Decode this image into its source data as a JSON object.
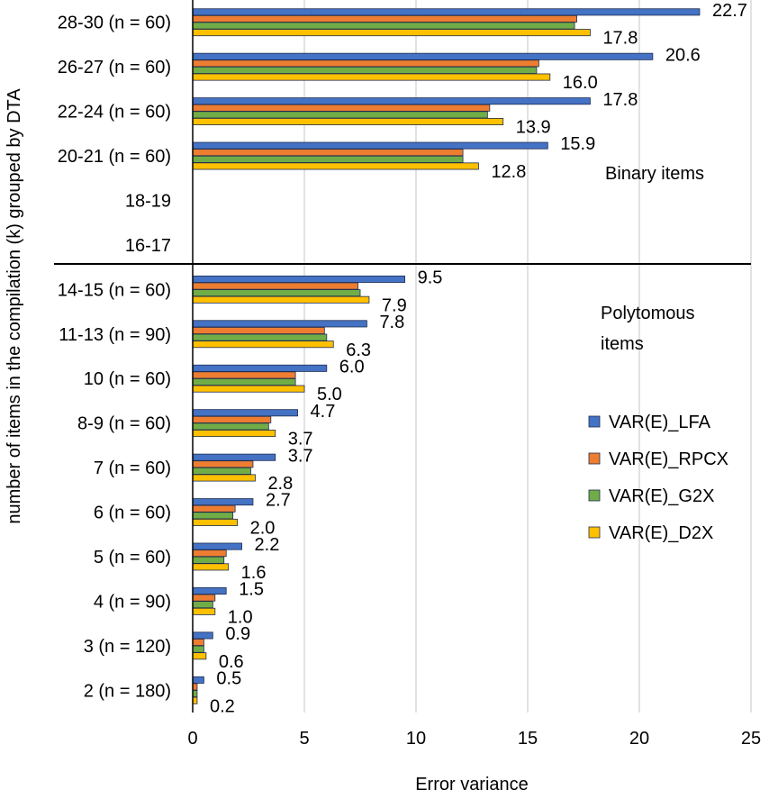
{
  "chart_data": {
    "type": "bar",
    "orientation": "horizontal",
    "xlabel": "Error variance",
    "ylabel": "number of items in the compilation (k) grouped by DTA",
    "xlim": [
      0,
      25
    ],
    "xticks": [
      0,
      5,
      10,
      15,
      20,
      25
    ],
    "grid": "vertical",
    "legend_position": "right",
    "categories": [
      "28-30 (n = 60)",
      "26-27 (n = 60)",
      "22-24 (n = 60)",
      "20-21 (n = 60)",
      "18-19",
      "16-17",
      "14-15 (n = 60)",
      "11-13 (n = 90)",
      "10 (n = 60)",
      "8-9 (n = 60)",
      "7 (n = 60)",
      "6 (n = 60)",
      "5 (n = 60)",
      "4 (n = 90)",
      "3 (n = 120)",
      "2 (n = 180)"
    ],
    "series": [
      {
        "name": "VAR(E)_LFA",
        "color": "#4472C4",
        "values": [
          22.7,
          20.6,
          17.8,
          15.9,
          null,
          null,
          9.5,
          7.8,
          6.0,
          4.7,
          3.7,
          2.7,
          2.2,
          1.5,
          0.9,
          0.5
        ]
      },
      {
        "name": "VAR(E)_RPCX",
        "color": "#ED7D31",
        "values": [
          17.2,
          15.5,
          13.3,
          12.1,
          null,
          null,
          7.4,
          5.9,
          4.6,
          3.5,
          2.7,
          1.9,
          1.5,
          1.0,
          0.5,
          0.2
        ]
      },
      {
        "name": "VAR(E)_G2X",
        "color": "#70AD47",
        "values": [
          17.1,
          15.4,
          13.2,
          12.1,
          null,
          null,
          7.5,
          6.0,
          4.6,
          3.4,
          2.6,
          1.8,
          1.4,
          0.9,
          0.5,
          0.2
        ]
      },
      {
        "name": "VAR(E)_D2X",
        "color": "#FFC000",
        "values": [
          17.8,
          16.0,
          13.9,
          12.8,
          null,
          null,
          7.9,
          6.3,
          5.0,
          3.7,
          2.8,
          2.0,
          1.6,
          1.0,
          0.6,
          0.2
        ]
      }
    ],
    "data_labels": [
      {
        "category_index": 0,
        "lfa": "22.7",
        "d2x": "17.8"
      },
      {
        "category_index": 1,
        "lfa": "20.6",
        "d2x": "16.0"
      },
      {
        "category_index": 2,
        "lfa": "17.8",
        "d2x": "13.9"
      },
      {
        "category_index": 3,
        "lfa": "15.9",
        "d2x": "12.8"
      },
      {
        "category_index": 6,
        "lfa": "9.5",
        "d2x": "7.9"
      },
      {
        "category_index": 7,
        "lfa": "7.8",
        "d2x": "6.3"
      },
      {
        "category_index": 8,
        "lfa": "6.0",
        "d2x": "5.0"
      },
      {
        "category_index": 9,
        "lfa": "4.7",
        "d2x": "3.7"
      },
      {
        "category_index": 10,
        "lfa": "3.7",
        "d2x": "2.8"
      },
      {
        "category_index": 11,
        "lfa": "2.7",
        "d2x": "2.0"
      },
      {
        "category_index": 12,
        "lfa": "2.2",
        "d2x": "1.6"
      },
      {
        "category_index": 13,
        "lfa": "1.5",
        "d2x": "1.0"
      },
      {
        "category_index": 14,
        "lfa": "0.9",
        "d2x": "0.6"
      },
      {
        "category_index": 15,
        "lfa": "0.5",
        "d2x": "0.2"
      }
    ],
    "annotations": {
      "binary": "Binary items",
      "polytomous_line1": "Polytomous",
      "polytomous_line2": "items"
    },
    "divider_after_category": "16-17"
  }
}
